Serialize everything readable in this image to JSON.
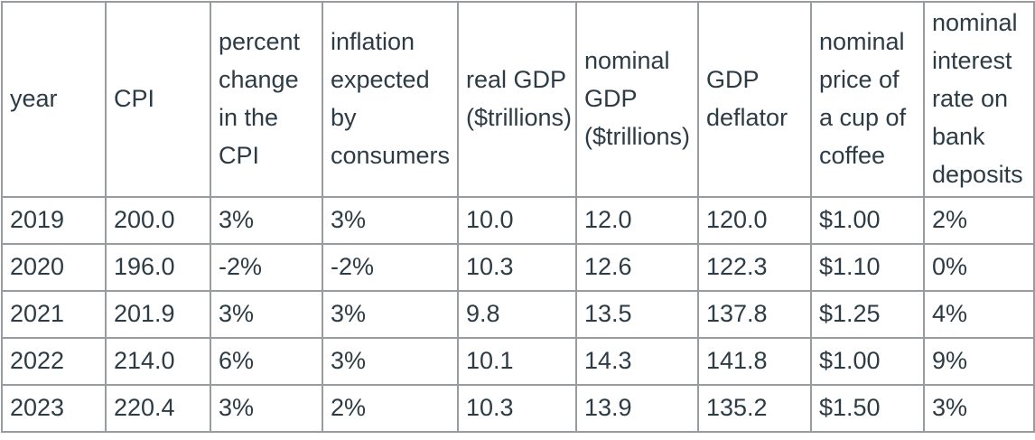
{
  "chart_data": {
    "type": "table",
    "title": "",
    "columns": [
      "year",
      "CPI",
      "percent change in the CPI",
      "inflation expected by consumers",
      "real GDP ($trillions)",
      "nominal GDP ($trillions)",
      "GDP deflator",
      "nominal price of a cup of coffee",
      "nominal interest rate on bank deposits"
    ],
    "rows": [
      [
        "2019",
        "200.0",
        "3%",
        "3%",
        "10.0",
        "12.0",
        "120.0",
        "$1.00",
        "2%"
      ],
      [
        "2020",
        "196.0",
        "-2%",
        "-2%",
        "10.3",
        "12.6",
        "122.3",
        "$1.10",
        "0%"
      ],
      [
        "2021",
        "201.9",
        "3%",
        "3%",
        "9.8",
        "13.5",
        "137.8",
        "$1.25",
        "4%"
      ],
      [
        "2022",
        "214.0",
        "6%",
        "3%",
        "10.1",
        "14.3",
        "141.8",
        "$1.00",
        "9%"
      ],
      [
        "2023",
        "220.4",
        "3%",
        "2%",
        "10.3",
        "13.9",
        "135.2",
        "$1.50",
        "3%"
      ]
    ],
    "layout": {
      "grid": "all-borders",
      "header_position": "top",
      "cell_alignment": "left"
    }
  },
  "colors": {
    "text": "#2d3b45",
    "border": "#989c9f",
    "background": "#ffffff"
  }
}
